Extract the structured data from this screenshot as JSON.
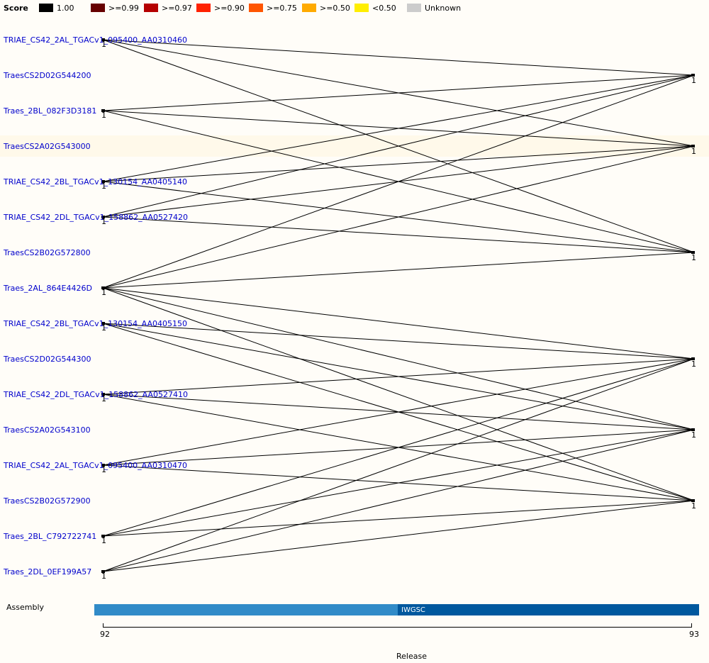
{
  "legend": {
    "title": "Score",
    "items": [
      {
        "label": "1.00",
        "color": "#000000"
      },
      {
        "label": ">=0.99",
        "color": "#660000"
      },
      {
        "label": ">=0.97",
        "color": "#b50000"
      },
      {
        "label": ">=0.90",
        "color": "#ff2200"
      },
      {
        "label": ">=0.75",
        "color": "#ff5500"
      },
      {
        "label": ">=0.50",
        "color": "#ffaa00"
      },
      {
        "label": "<0.50",
        "color": "#ffee00"
      },
      {
        "label": "Unknown",
        "color": "#cccccc"
      }
    ]
  },
  "rows": [
    {
      "label": "TRIAE_CS42_2AL_TGACv1_095400_AA0310460",
      "left_count": "1",
      "right_count": ""
    },
    {
      "label": "TraesCS2D02G544200",
      "left_count": "",
      "right_count": "1"
    },
    {
      "label": "Traes_2BL_082F3D3181",
      "left_count": "1",
      "right_count": ""
    },
    {
      "label": "TraesCS2A02G543000",
      "left_count": "",
      "right_count": "1"
    },
    {
      "label": "TRIAE_CS42_2BL_TGACv1_130154_AA0405140",
      "left_count": "1",
      "right_count": ""
    },
    {
      "label": "TRIAE_CS42_2DL_TGACv1_158862_AA0527420",
      "left_count": "1",
      "right_count": ""
    },
    {
      "label": "TraesCS2B02G572800",
      "left_count": "",
      "right_count": "1"
    },
    {
      "label": "Traes_2AL_864E4426D",
      "left_count": "1",
      "right_count": ""
    },
    {
      "label": "TRIAE_CS42_2BL_TGACv1_130154_AA0405150",
      "left_count": "1",
      "right_count": ""
    },
    {
      "label": "TraesCS2D02G544300",
      "left_count": "",
      "right_count": "1"
    },
    {
      "label": "TRIAE_CS42_2DL_TGACv1_158862_AA0527410",
      "left_count": "1",
      "right_count": ""
    },
    {
      "label": "TraesCS2A02G543100",
      "left_count": "",
      "right_count": "1"
    },
    {
      "label": "TRIAE_CS42_2AL_TGACv1_095400_AA0310470",
      "left_count": "1",
      "right_count": ""
    },
    {
      "label": "TraesCS2B02G572900",
      "left_count": "",
      "right_count": "1"
    },
    {
      "label": "Traes_2BL_C792722741",
      "left_count": "1",
      "right_count": ""
    },
    {
      "label": "Traes_2DL_0EF199A57",
      "left_count": "1",
      "right_count": ""
    }
  ],
  "highlighted_row": 3,
  "links": [
    [
      0,
      1
    ],
    [
      0,
      3
    ],
    [
      0,
      6
    ],
    [
      2,
      1
    ],
    [
      2,
      3
    ],
    [
      2,
      6
    ],
    [
      4,
      1
    ],
    [
      4,
      3
    ],
    [
      4,
      6
    ],
    [
      5,
      1
    ],
    [
      5,
      3
    ],
    [
      5,
      6
    ],
    [
      7,
      1
    ],
    [
      7,
      3
    ],
    [
      7,
      6
    ],
    [
      7,
      9
    ],
    [
      7,
      11
    ],
    [
      7,
      13
    ],
    [
      8,
      9
    ],
    [
      8,
      11
    ],
    [
      8,
      13
    ],
    [
      10,
      9
    ],
    [
      10,
      11
    ],
    [
      10,
      13
    ],
    [
      12,
      9
    ],
    [
      12,
      11
    ],
    [
      12,
      13
    ],
    [
      14,
      9
    ],
    [
      14,
      11
    ],
    [
      14,
      13
    ],
    [
      15,
      9
    ],
    [
      15,
      11
    ],
    [
      15,
      13
    ]
  ],
  "link_color": "#000000",
  "assembly": {
    "label": "Assembly",
    "name": "IWGSC"
  },
  "axis": {
    "title": "Release",
    "left_release": "92",
    "right_release": "93"
  }
}
